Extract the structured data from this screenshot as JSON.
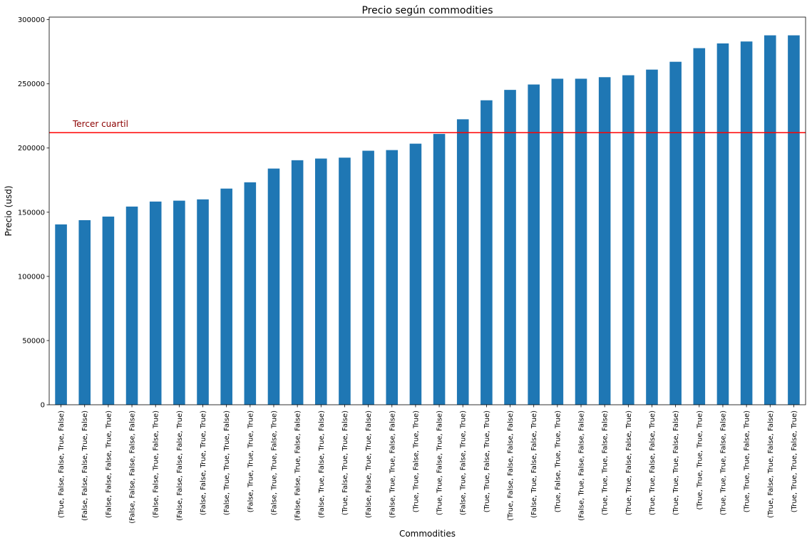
{
  "chart_data": {
    "type": "bar",
    "title": "Precio según commodities",
    "xlabel": "Commodities",
    "ylabel": "Precio (usd)",
    "ylim": [
      0,
      302000
    ],
    "yticks": [
      0,
      50000,
      100000,
      150000,
      200000,
      250000,
      300000
    ],
    "grid": false,
    "bar_color": "#1f77b4",
    "categories": [
      "(True, False, False, True, False)",
      "(False, False, False, True, False)",
      "(False, False, False, True, True)",
      "(False, False, False, False, False)",
      "(False, False, True, False, True)",
      "(False, False, False, False, True)",
      "(False, False, True, True, True)",
      "(False, True, True, True, False)",
      "(False, True, True, True, True)",
      "(False, True, True, False, True)",
      "(False, False, True, False, False)",
      "(False, True, False, True, False)",
      "(True, False, True, True, False)",
      "(False, False, True, True, False)",
      "(False, True, True, False, False)",
      "(True, True, False, True, True)",
      "(True, True, False, True, False)",
      "(False, True, False, True, True)",
      "(True, True, False, True, True)",
      "(True, False, False, False, False)",
      "(False, True, False, False, True)",
      "(True, False, True, True, True)",
      "(False, True, False, False, False)",
      "(True, True, True, False, False)",
      "(True, True, False, False, True)",
      "(True, True, False, False, True)",
      "(True, True, True, False, False)",
      "(True, True, True, True, True)",
      "(True, True, True, False, False)",
      "(True, True, True, False, True)",
      "(True, False, True, False, False)",
      "(True, True, True, False, True)"
    ],
    "values": [
      140500,
      143800,
      146600,
      154400,
      158300,
      159000,
      160000,
      168400,
      173300,
      184000,
      190500,
      191800,
      192500,
      197900,
      198400,
      203400,
      211000,
      222400,
      237200,
      245300,
      249500,
      254000,
      254000,
      255200,
      256700,
      261100,
      267200,
      277800,
      281500,
      283000,
      287800,
      287800
    ],
    "annotations": [
      {
        "type": "hline",
        "y": 212000,
        "color": "#ff0000",
        "label": "Tercer cuartil",
        "label_color": "#8b0000"
      }
    ]
  }
}
